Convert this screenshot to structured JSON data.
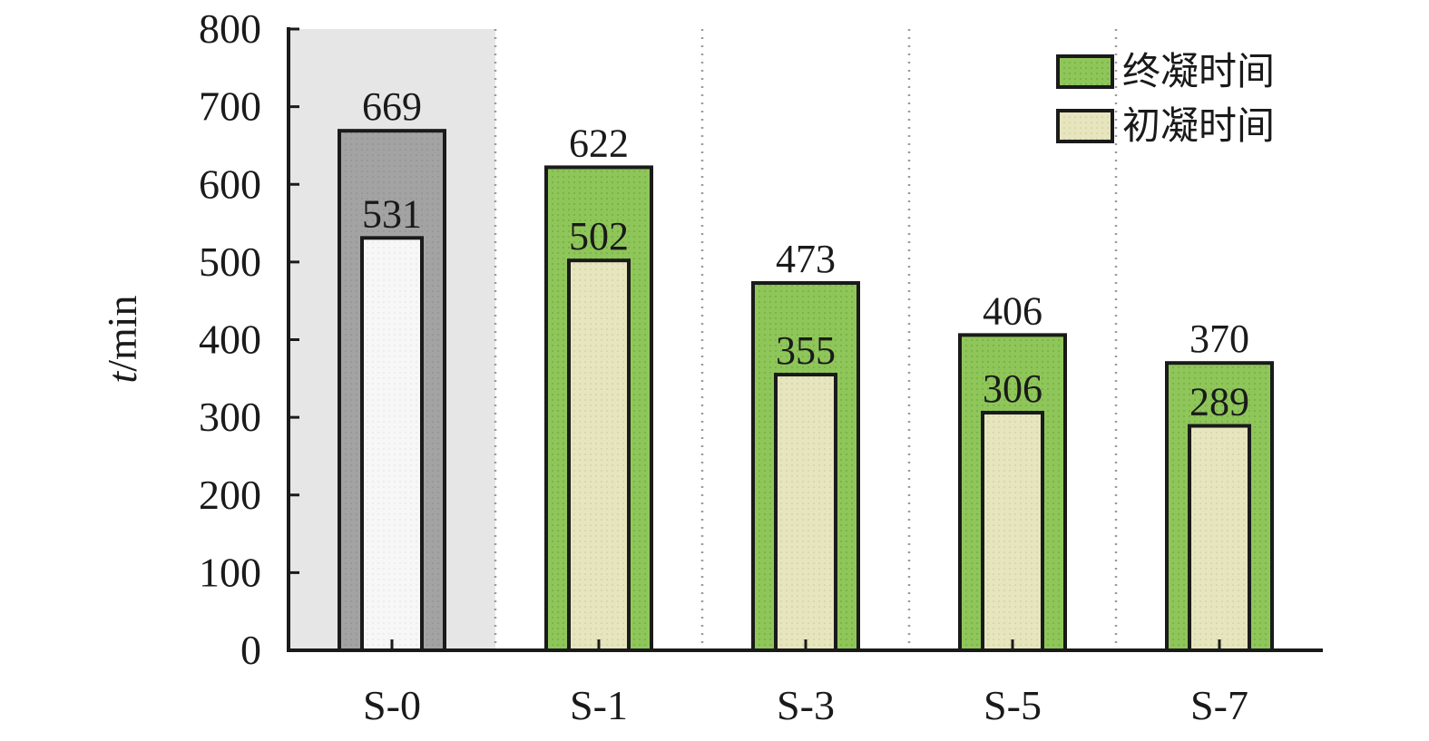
{
  "chart_data": {
    "type": "bar",
    "categories": [
      "S-0",
      "S-1",
      "S-3",
      "S-5",
      "S-7"
    ],
    "series": [
      {
        "name": "终凝时间",
        "values": [
          669,
          622,
          473,
          406,
          370
        ]
      },
      {
        "name": "初凝时间",
        "values": [
          531,
          502,
          355,
          306,
          289
        ]
      }
    ],
    "xlabel": "",
    "ylabel_italic": "t",
    "ylabel_rest": "/min",
    "ylim": [
      0,
      800
    ],
    "yticks": [
      0,
      100,
      200,
      300,
      400,
      500,
      600,
      700,
      800
    ],
    "legend_position": "top-right",
    "highlight_category": "S-0",
    "colors": {
      "final_fill": "#8fc65a",
      "initial_fill": "#e6e5bd",
      "baseline_final_fill": "#a3a3a3",
      "baseline_initial_fill": "#f7f7f7",
      "highlight_band": "#e6e6e6",
      "outline": "#1a1a1a"
    }
  }
}
